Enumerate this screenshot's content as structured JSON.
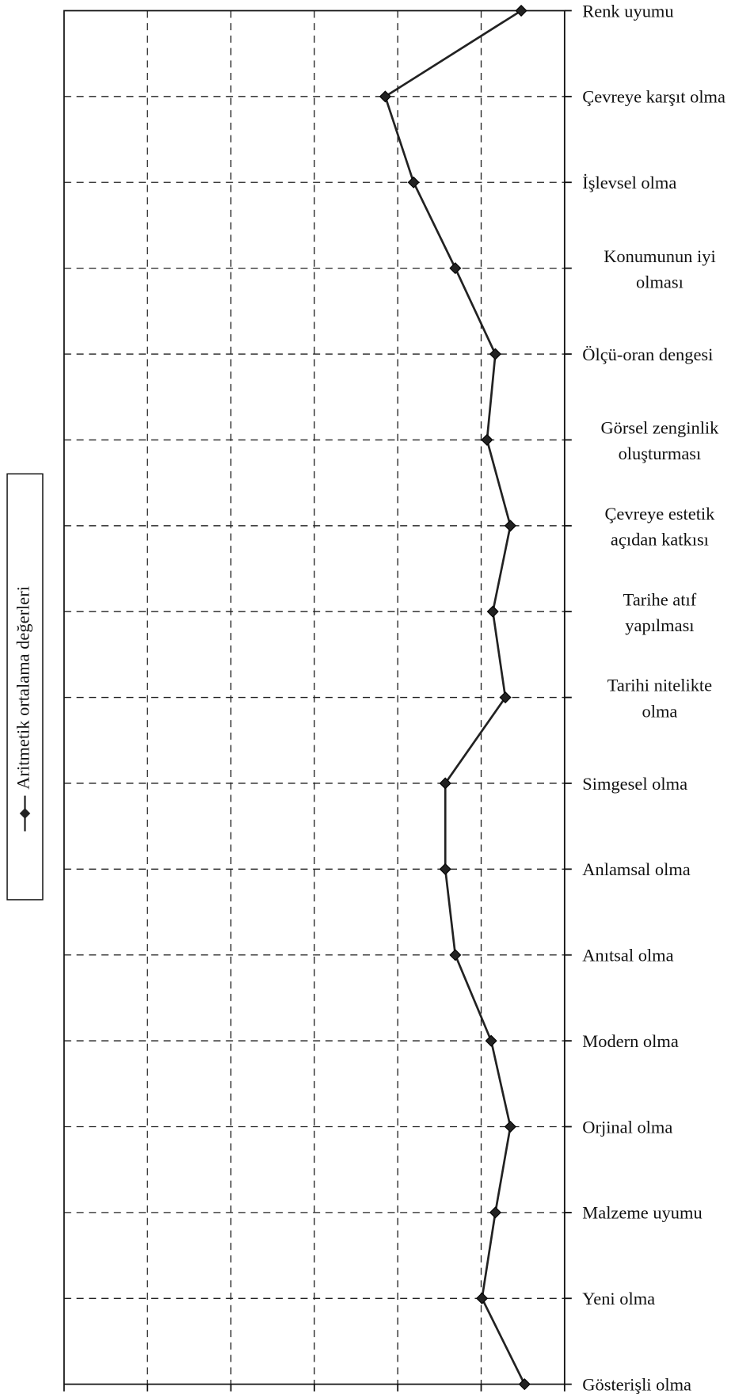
{
  "chart_data": {
    "type": "line",
    "legend_title": "Aritmetik ortalama değerleri",
    "categories": [
      "Renk uyumu",
      "Çevreye karşıt olma",
      "İşlevsel olma",
      "Konumunun iyi\nolması",
      "Ölçü-oran dengesi",
      "Görsel zenginlik\noluşturması",
      "Çevreye estetik\naçıdan katkısı",
      "Tarihe atıf\nyapılması",
      "Tarihi nitelikte\nolma",
      "Simgesel olma",
      "Anlamsal olma",
      "Anıtsal olma",
      "Modern olma",
      "Orjinal olma",
      "Malzeme uyumu",
      "Yeni olma",
      "Gösterişli olma"
    ],
    "series": [
      {
        "name": "Aritmetik ortalama değerleri",
        "color": "#222222",
        "values": [
          1.52,
          3.15,
          2.81,
          2.31,
          1.83,
          1.93,
          1.65,
          1.86,
          1.71,
          2.43,
          2.43,
          2.31,
          1.88,
          1.65,
          1.83,
          1.99,
          1.48
        ]
      }
    ],
    "xlim": [
      7,
      1
    ],
    "xticks": [
      7,
      6,
      5,
      4,
      3,
      2,
      1
    ],
    "grid": true,
    "legend": "left"
  }
}
